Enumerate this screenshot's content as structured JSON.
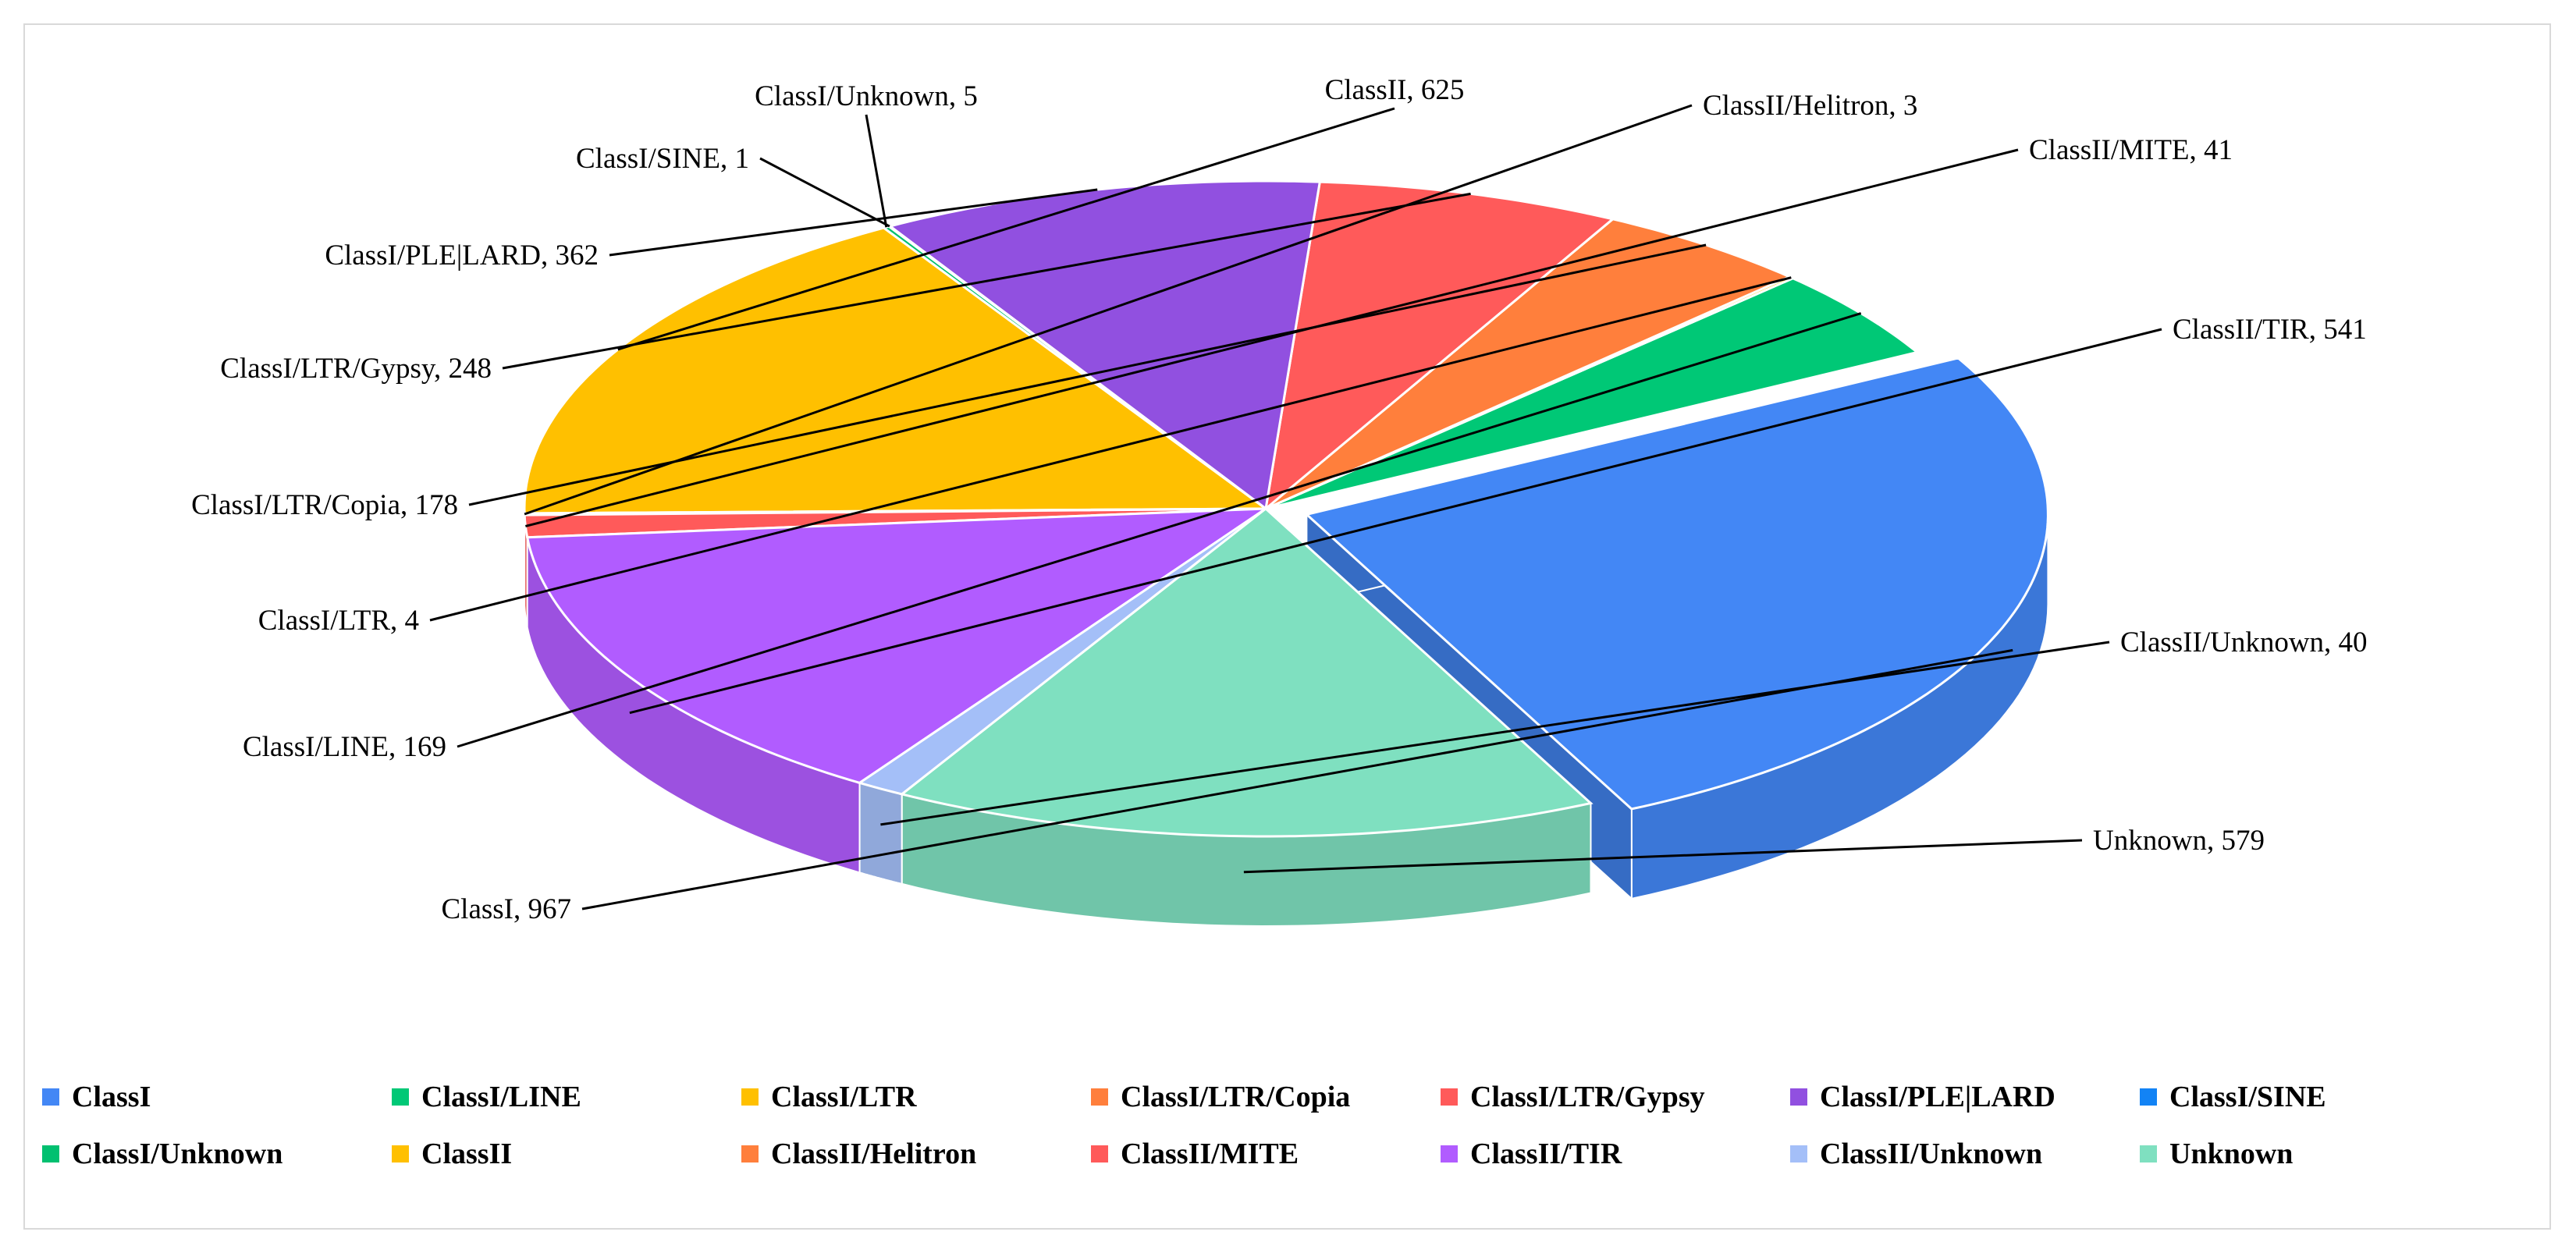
{
  "chart_data": {
    "type": "pie",
    "style": "3d-exploded",
    "title": "",
    "slices": [
      {
        "name": "ClassI",
        "value": 967,
        "color": "#4387f5",
        "label": "ClassI, 967"
      },
      {
        "name": "ClassI/LINE",
        "value": 169,
        "color": "#00c876",
        "label": "ClassI/LINE, 169"
      },
      {
        "name": "ClassI/LTR",
        "value": 4,
        "color": "#ffc000",
        "label": "ClassI/LTR, 4"
      },
      {
        "name": "ClassI/LTR/Copia",
        "value": 178,
        "color": "#ff7f3c",
        "label": "ClassI/LTR/Copia, 178"
      },
      {
        "name": "ClassI/LTR/Gypsy",
        "value": 248,
        "color": "#ff5a5a",
        "label": "ClassI/LTR/Gypsy, 248"
      },
      {
        "name": "ClassI/PLE|LARD",
        "value": 362,
        "color": "#9150e0",
        "label": "ClassI/PLE|LARD, 362"
      },
      {
        "name": "ClassI/SINE",
        "value": 1,
        "color": "#1283f5",
        "label": "ClassI/SINE, 1"
      },
      {
        "name": "ClassI/Unknown",
        "value": 5,
        "color": "#00c070",
        "label": "ClassI/Unknown, 5"
      },
      {
        "name": "ClassII",
        "value": 625,
        "color": "#ffc000",
        "label": "ClassII, 625"
      },
      {
        "name": "ClassII/Helitron",
        "value": 3,
        "color": "#ff7f3c",
        "label": "ClassII/Helitron, 3"
      },
      {
        "name": "ClassII/MITE",
        "value": 41,
        "color": "#ff5a5a",
        "label": "ClassII/MITE, 41"
      },
      {
        "name": "ClassII/TIR",
        "value": 541,
        "color": "#b15cff",
        "label": "ClassII/TIR, 541"
      },
      {
        "name": "ClassII/Unknown",
        "value": 40,
        "color": "#a4bff8",
        "label": "ClassII/Unknown, 40"
      },
      {
        "name": "Unknown",
        "value": 579,
        "color": "#7fe0c0",
        "label": "Unknown, 579"
      }
    ],
    "legend": {
      "placement": "bottom",
      "entries": [
        {
          "name": "ClassI",
          "color": "#4387f5"
        },
        {
          "name": "ClassI/LINE",
          "color": "#00c876"
        },
        {
          "name": "ClassI/LTR",
          "color": "#ffc000"
        },
        {
          "name": "ClassI/LTR/Copia",
          "color": "#ff7f3c"
        },
        {
          "name": "ClassI/LTR/Gypsy",
          "color": "#ff5a5a"
        },
        {
          "name": "ClassI/PLE|LARD",
          "color": "#9150e0"
        },
        {
          "name": "ClassI/SINE",
          "color": "#1283f5"
        },
        {
          "name": "ClassI/Unknown",
          "color": "#00c070"
        },
        {
          "name": "ClassII",
          "color": "#ffc000"
        },
        {
          "name": "ClassII/Helitron",
          "color": "#ff7f3c"
        },
        {
          "name": "ClassII/MITE",
          "color": "#ff5a5a"
        },
        {
          "name": "ClassII/TIR",
          "color": "#b15cff"
        },
        {
          "name": "ClassII/Unknown",
          "color": "#a4bff8"
        },
        {
          "name": "Unknown",
          "color": "#7fe0c0"
        }
      ]
    }
  }
}
